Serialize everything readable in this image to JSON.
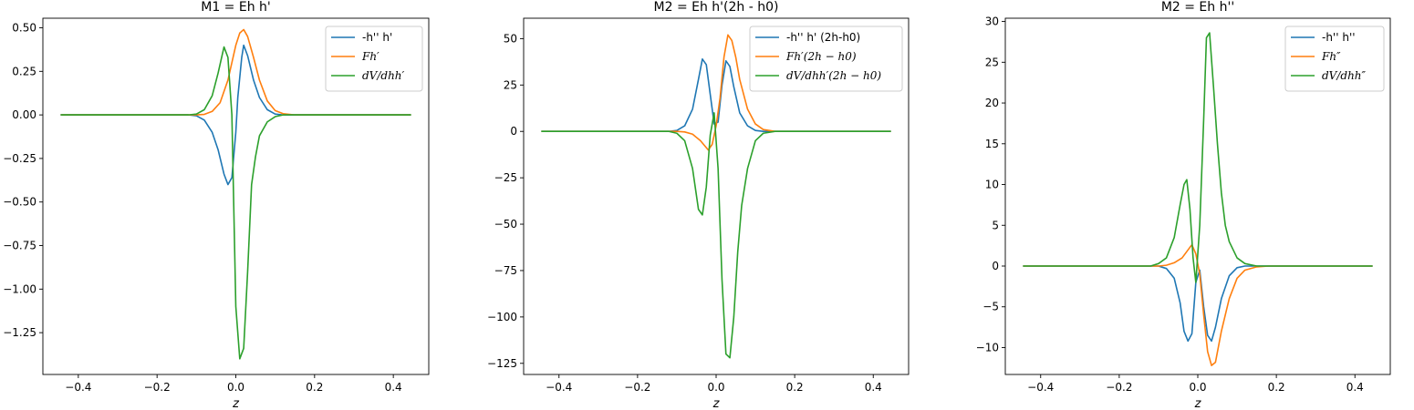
{
  "chart_data": [
    {
      "type": "line",
      "title": "M1 = Eh h'",
      "xlabel": "z",
      "ylabel": "",
      "xlim": [
        -0.49,
        0.49
      ],
      "ylim": [
        -1.49,
        0.555
      ],
      "xticks": [
        -0.4,
        -0.2,
        0.0,
        0.2,
        0.4
      ],
      "xtick_labels": [
        "−0.4",
        "−0.2",
        "0.0",
        "0.2",
        "0.4"
      ],
      "yticks": [
        -1.25,
        -1.0,
        -0.75,
        -0.5,
        -0.25,
        0.0,
        0.25,
        0.5
      ],
      "ytick_labels": [
        "−1.25",
        "−1.00",
        "−0.75",
        "−0.50",
        "−0.25",
        "0.00",
        "0.25",
        "0.50"
      ],
      "grid": false,
      "legend_position": "top-right",
      "series": [
        {
          "name": "-h'' h'",
          "color": "#1f77b4",
          "points": [
            [
              -0.445,
              0
            ],
            [
              -0.12,
              0
            ],
            [
              -0.1,
              -0.005
            ],
            [
              -0.08,
              -0.03
            ],
            [
              -0.06,
              -0.1
            ],
            [
              -0.045,
              -0.2
            ],
            [
              -0.03,
              -0.34
            ],
            [
              -0.02,
              -0.4
            ],
            [
              -0.01,
              -0.36
            ],
            [
              0,
              -0.1
            ],
            [
              0.005,
              0.1
            ],
            [
              0.015,
              0.33
            ],
            [
              0.02,
              0.4
            ],
            [
              0.03,
              0.34
            ],
            [
              0.045,
              0.2
            ],
            [
              0.06,
              0.1
            ],
            [
              0.08,
              0.03
            ],
            [
              0.1,
              0.005
            ],
            [
              0.12,
              0
            ],
            [
              0.445,
              0
            ]
          ]
        },
        {
          "name": "Fh′",
          "color": "#ff7f0e",
          "points": [
            [
              -0.445,
              0
            ],
            [
              -0.1,
              0
            ],
            [
              -0.08,
              0.003
            ],
            [
              -0.06,
              0.02
            ],
            [
              -0.04,
              0.07
            ],
            [
              -0.02,
              0.2
            ],
            [
              -0.01,
              0.3
            ],
            [
              0,
              0.4
            ],
            [
              0.01,
              0.47
            ],
            [
              0.02,
              0.49
            ],
            [
              0.03,
              0.45
            ],
            [
              0.045,
              0.33
            ],
            [
              0.06,
              0.2
            ],
            [
              0.08,
              0.08
            ],
            [
              0.1,
              0.025
            ],
            [
              0.12,
              0.007
            ],
            [
              0.15,
              0
            ],
            [
              0.445,
              0
            ]
          ]
        },
        {
          "name": "dV/dhh′",
          "color": "#2ca02c",
          "points": [
            [
              -0.445,
              0
            ],
            [
              -0.12,
              0
            ],
            [
              -0.1,
              0.005
            ],
            [
              -0.08,
              0.03
            ],
            [
              -0.06,
              0.11
            ],
            [
              -0.045,
              0.24
            ],
            [
              -0.035,
              0.34
            ],
            [
              -0.03,
              0.39
            ],
            [
              -0.02,
              0.33
            ],
            [
              -0.01,
              0.0
            ],
            [
              0,
              -1.1
            ],
            [
              0.01,
              -1.4
            ],
            [
              0.02,
              -1.34
            ],
            [
              0.03,
              -0.9
            ],
            [
              0.04,
              -0.4
            ],
            [
              0.05,
              -0.24
            ],
            [
              0.06,
              -0.12
            ],
            [
              0.08,
              -0.04
            ],
            [
              0.1,
              -0.01
            ],
            [
              0.12,
              0
            ],
            [
              0.445,
              0
            ]
          ]
        }
      ]
    },
    {
      "type": "line",
      "title": "M2 = Eh h'(2h - h0)",
      "xlabel": "z",
      "ylabel": "",
      "xlim": [
        -0.49,
        0.49
      ],
      "ylim": [
        -131,
        61
      ],
      "xticks": [
        -0.4,
        -0.2,
        0.0,
        0.2,
        0.4
      ],
      "xtick_labels": [
        "−0.4",
        "−0.2",
        "0.0",
        "0.2",
        "0.4"
      ],
      "yticks": [
        -125,
        -100,
        -75,
        -50,
        -25,
        0,
        25,
        50
      ],
      "ytick_labels": [
        "−125",
        "−100",
        "−75",
        "−50",
        "−25",
        "0",
        "25",
        "50"
      ],
      "grid": false,
      "legend_position": "top-right",
      "series": [
        {
          "name": "-h'' h' (2h-h0)",
          "color": "#1f77b4",
          "points": [
            [
              -0.445,
              0
            ],
            [
              -0.12,
              0
            ],
            [
              -0.1,
              0.5
            ],
            [
              -0.08,
              3
            ],
            [
              -0.06,
              12
            ],
            [
              -0.045,
              28
            ],
            [
              -0.035,
              39
            ],
            [
              -0.025,
              36
            ],
            [
              -0.015,
              20
            ],
            [
              -0.005,
              4
            ],
            [
              0.005,
              5
            ],
            [
              0.015,
              25
            ],
            [
              0.025,
              38
            ],
            [
              0.035,
              35
            ],
            [
              0.045,
              24
            ],
            [
              0.06,
              10
            ],
            [
              0.08,
              3
            ],
            [
              0.1,
              0.5
            ],
            [
              0.12,
              0
            ],
            [
              0.445,
              0
            ]
          ]
        },
        {
          "name": "Fh′(2h − h0)",
          "color": "#ff7f0e",
          "points": [
            [
              -0.445,
              0
            ],
            [
              -0.1,
              0
            ],
            [
              -0.08,
              -0.3
            ],
            [
              -0.06,
              -1.5
            ],
            [
              -0.04,
              -5
            ],
            [
              -0.02,
              -10
            ],
            [
              -0.01,
              -7
            ],
            [
              0,
              3
            ],
            [
              0.01,
              18
            ],
            [
              0.02,
              40
            ],
            [
              0.03,
              52
            ],
            [
              0.04,
              49
            ],
            [
              0.05,
              40
            ],
            [
              0.06,
              28
            ],
            [
              0.08,
              12
            ],
            [
              0.1,
              4
            ],
            [
              0.12,
              1
            ],
            [
              0.15,
              0
            ],
            [
              0.445,
              0
            ]
          ]
        },
        {
          "name": "dV/dhh′(2h − h0)",
          "color": "#2ca02c",
          "points": [
            [
              -0.445,
              0
            ],
            [
              -0.12,
              0
            ],
            [
              -0.1,
              -1
            ],
            [
              -0.08,
              -5
            ],
            [
              -0.06,
              -20
            ],
            [
              -0.045,
              -42
            ],
            [
              -0.035,
              -45
            ],
            [
              -0.025,
              -30
            ],
            [
              -0.015,
              -2
            ],
            [
              -0.005,
              10
            ],
            [
              0.005,
              -20
            ],
            [
              0.015,
              -80
            ],
            [
              0.025,
              -120
            ],
            [
              0.035,
              -122
            ],
            [
              0.045,
              -100
            ],
            [
              0.055,
              -65
            ],
            [
              0.065,
              -40
            ],
            [
              0.08,
              -20
            ],
            [
              0.1,
              -5
            ],
            [
              0.12,
              -1
            ],
            [
              0.15,
              0
            ],
            [
              0.445,
              0
            ]
          ]
        }
      ]
    },
    {
      "type": "line",
      "title": "M2 = Eh h''",
      "xlabel": "z",
      "ylabel": "",
      "xlim": [
        -0.49,
        0.49
      ],
      "ylim": [
        -13.3,
        30.4
      ],
      "xticks": [
        -0.4,
        -0.2,
        0.0,
        0.2,
        0.4
      ],
      "xtick_labels": [
        "−0.4",
        "−0.2",
        "0.0",
        "0.2",
        "0.4"
      ],
      "yticks": [
        -10,
        -5,
        0,
        5,
        10,
        15,
        20,
        25,
        30
      ],
      "ytick_labels": [
        "−10",
        "−5",
        "0",
        "5",
        "10",
        "15",
        "20",
        "25",
        "30"
      ],
      "grid": false,
      "legend_position": "top-right",
      "series": [
        {
          "name": "-h'' h''",
          "color": "#1f77b4",
          "points": [
            [
              -0.445,
              0
            ],
            [
              -0.1,
              0
            ],
            [
              -0.08,
              -0.3
            ],
            [
              -0.06,
              -1.5
            ],
            [
              -0.045,
              -4.5
            ],
            [
              -0.035,
              -8
            ],
            [
              -0.025,
              -9.2
            ],
            [
              -0.015,
              -8.3
            ],
            [
              -0.005,
              -2
            ],
            [
              0.005,
              -0.5
            ],
            [
              0.015,
              -5
            ],
            [
              0.025,
              -8.5
            ],
            [
              0.035,
              -9.2
            ],
            [
              0.045,
              -7.5
            ],
            [
              0.06,
              -4
            ],
            [
              0.08,
              -1.2
            ],
            [
              0.1,
              -0.2
            ],
            [
              0.12,
              0
            ],
            [
              0.445,
              0
            ]
          ]
        },
        {
          "name": "Fh″",
          "color": "#ff7f0e",
          "points": [
            [
              -0.445,
              0
            ],
            [
              -0.1,
              0
            ],
            [
              -0.08,
              0.1
            ],
            [
              -0.06,
              0.4
            ],
            [
              -0.04,
              1
            ],
            [
              -0.02,
              2.3
            ],
            [
              -0.015,
              2.6
            ],
            [
              -0.005,
              1.5
            ],
            [
              0.005,
              -1
            ],
            [
              0.015,
              -6
            ],
            [
              0.025,
              -10.5
            ],
            [
              0.035,
              -12.2
            ],
            [
              0.045,
              -11.8
            ],
            [
              0.06,
              -8
            ],
            [
              0.08,
              -4
            ],
            [
              0.1,
              -1.5
            ],
            [
              0.12,
              -0.5
            ],
            [
              0.15,
              -0.1
            ],
            [
              0.18,
              0
            ],
            [
              0.445,
              0
            ]
          ]
        },
        {
          "name": "dV/dhh″",
          "color": "#2ca02c",
          "points": [
            [
              -0.445,
              0
            ],
            [
              -0.12,
              0
            ],
            [
              -0.1,
              0.3
            ],
            [
              -0.08,
              1
            ],
            [
              -0.06,
              3.5
            ],
            [
              -0.045,
              7.5
            ],
            [
              -0.035,
              10
            ],
            [
              -0.028,
              10.6
            ],
            [
              -0.02,
              7
            ],
            [
              -0.012,
              1
            ],
            [
              -0.005,
              -2
            ],
            [
              0.005,
              5
            ],
            [
              0.015,
              18
            ],
            [
              0.022,
              28
            ],
            [
              0.03,
              28.6
            ],
            [
              0.04,
              22
            ],
            [
              0.05,
              15
            ],
            [
              0.06,
              9
            ],
            [
              0.07,
              5
            ],
            [
              0.08,
              3
            ],
            [
              0.1,
              1
            ],
            [
              0.12,
              0.3
            ],
            [
              0.15,
              0
            ],
            [
              0.445,
              0
            ]
          ]
        }
      ]
    }
  ]
}
